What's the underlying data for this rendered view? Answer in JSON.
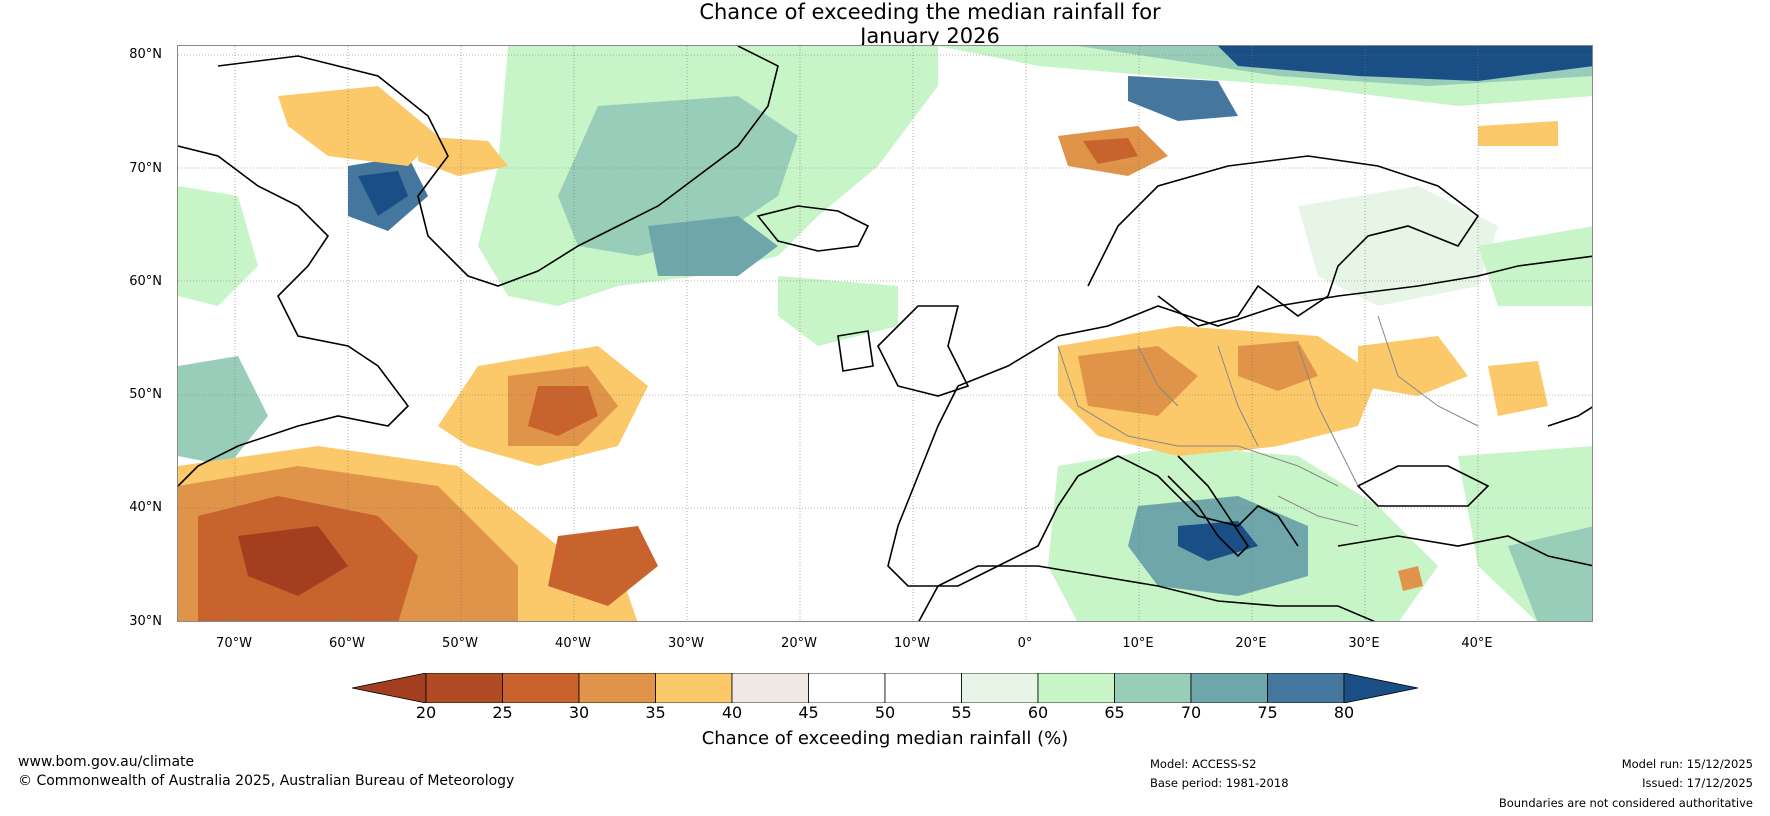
{
  "title_line1": "Chance of exceeding the median rainfall for",
  "title_line2": "January 2026",
  "lat_labels": [
    "80°N",
    "70°N",
    "60°N",
    "50°N",
    "40°N",
    "30°N"
  ],
  "lon_labels": [
    "70°W",
    "60°W",
    "50°W",
    "40°W",
    "30°W",
    "20°W",
    "10°W",
    "0°",
    "10°E",
    "20°E",
    "30°E",
    "40°E"
  ],
  "colorbar": {
    "ticks": [
      "20",
      "25",
      "30",
      "35",
      "40",
      "45",
      "50",
      "55",
      "60",
      "65",
      "70",
      "75",
      "80"
    ],
    "colors": [
      "#a33e1f",
      "#b04b25",
      "#c8632e",
      "#e0944a",
      "#fcc96a",
      "#efe9e6",
      "#ffffff",
      "#ffffff",
      "#e6f5e6",
      "#c8f5c8",
      "#98cdb9",
      "#6ea6a9",
      "#45779e",
      "#1a4f86"
    ],
    "label": "Chance of exceeding median rainfall (%)"
  },
  "footer": {
    "website": "www.bom.gov.au/climate",
    "copyright": "© Commonwealth of Australia 2025, Australian Bureau of Meteorology",
    "model": "Model: ACCESS-S2",
    "base_period": "Base period: 1981-2018",
    "model_run": "Model run: 15/12/2025",
    "issued": "Issued: 17/12/2025",
    "disclaimer": "Boundaries are not considered authoritative"
  }
}
